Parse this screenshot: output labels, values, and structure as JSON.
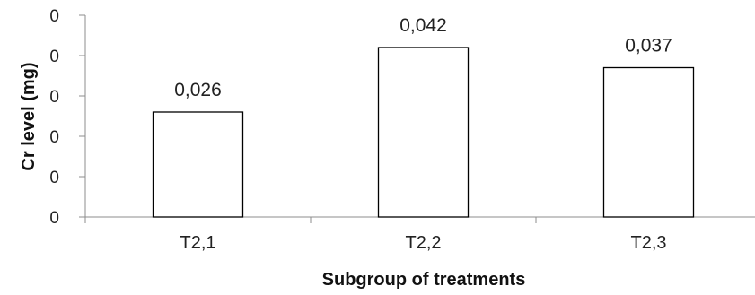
{
  "chart_data": {
    "type": "bar",
    "categories": [
      "T2,1",
      "T2,2",
      "T2,3"
    ],
    "values": [
      0.026,
      0.042,
      0.037
    ],
    "data_labels": [
      "0,026",
      "0,042",
      "0,037"
    ],
    "y_tick_labels": [
      "0",
      "0",
      "0",
      "0",
      "0",
      "0"
    ],
    "xlabel": "Subgroup of treatments",
    "ylabel": "Cr level (mg)",
    "ylim": [
      0,
      0.05
    ],
    "grid": false,
    "legend": "none",
    "colors": {
      "bar_fill": "#ffffff",
      "bar_stroke": "#000000",
      "axis": "#8c8c8c"
    }
  }
}
